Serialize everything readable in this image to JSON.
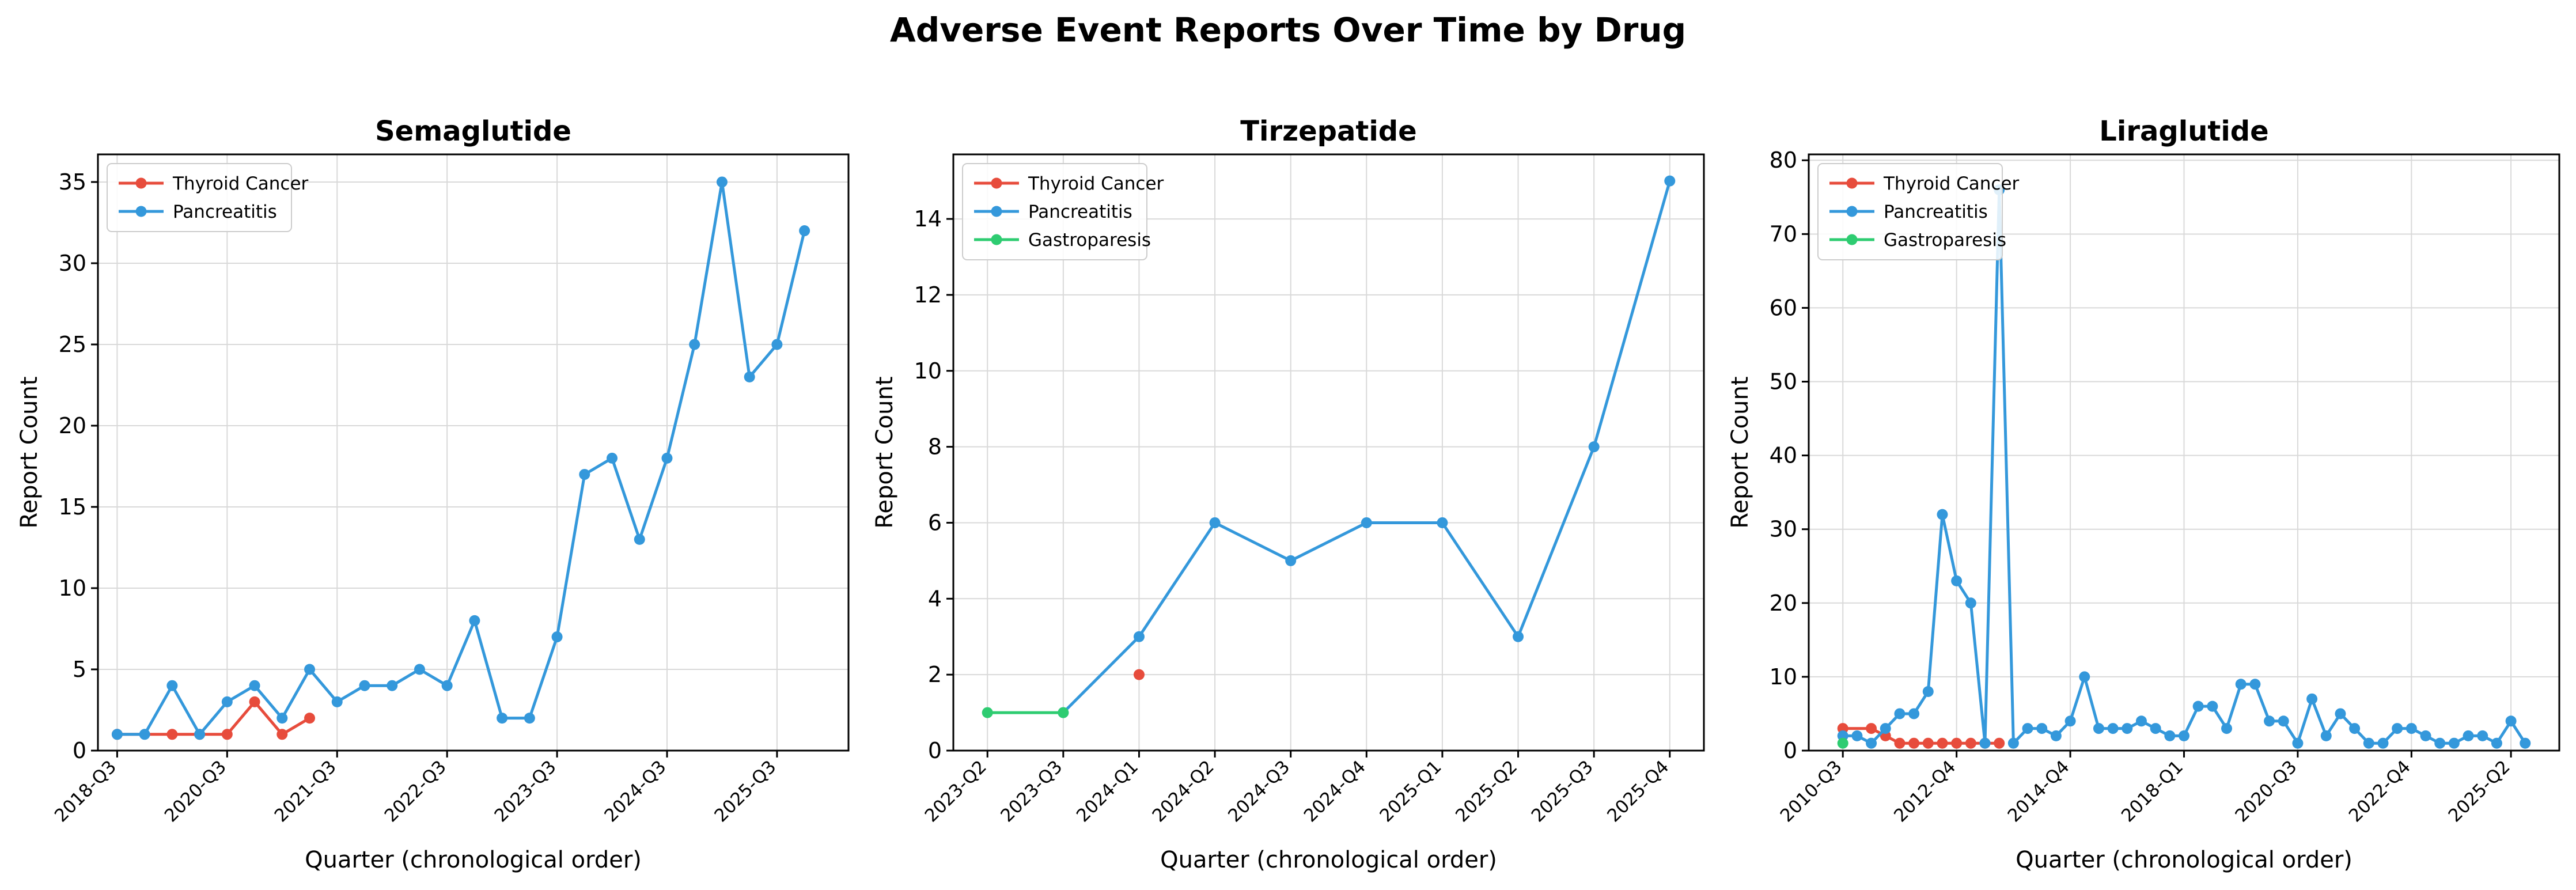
{
  "figure_title": "Adverse Event Reports Over Time by Drug",
  "colors": {
    "Thyroid Cancer": "#e74c3c",
    "Pancreatitis": "#3498db",
    "Gastroparesis": "#2ecc71"
  },
  "chart_data": [
    {
      "type": "line",
      "title": "Semaglutide",
      "xlabel": "Quarter (chronological order)",
      "ylabel": "Report Count",
      "ylim": [
        0,
        36.7
      ],
      "yticks": [
        0,
        5,
        10,
        15,
        20,
        25,
        30,
        35
      ],
      "xlim": [
        -0.7,
        26.6
      ],
      "xtick_labels": [
        {
          "i": 0,
          "label": "2018-Q3"
        },
        {
          "i": 4,
          "label": "2020-Q3"
        },
        {
          "i": 8,
          "label": "2021-Q3"
        },
        {
          "i": 12,
          "label": "2022-Q3"
        },
        {
          "i": 16,
          "label": "2023-Q3"
        },
        {
          "i": 20,
          "label": "2024-Q3"
        },
        {
          "i": 24,
          "label": "2025-Q3"
        }
      ],
      "grid": true,
      "legend": "upper left",
      "series": [
        {
          "name": "Thyroid Cancer",
          "x": [
            0,
            2,
            3,
            4,
            5,
            6,
            7
          ],
          "y": [
            1,
            1,
            1,
            1,
            3,
            1,
            2
          ]
        },
        {
          "name": "Pancreatitis",
          "x": [
            0,
            1,
            2,
            3,
            4,
            5,
            6,
            7,
            8,
            9,
            10,
            11,
            12,
            13,
            14,
            15,
            16,
            17,
            18,
            19,
            20,
            21,
            22,
            23,
            24,
            25
          ],
          "y": [
            1,
            1,
            4,
            1,
            3,
            4,
            2,
            5,
            3,
            4,
            4,
            5,
            4,
            8,
            2,
            2,
            7,
            17,
            18,
            13,
            18,
            25,
            35,
            23,
            25,
            32
          ]
        }
      ]
    },
    {
      "type": "line",
      "title": "Tirzepatide",
      "xlabel": "Quarter (chronological order)",
      "ylabel": "Report Count",
      "ylim": [
        0,
        15.7
      ],
      "yticks": [
        0,
        2,
        4,
        6,
        8,
        10,
        12,
        14
      ],
      "xlim": [
        -0.45,
        9.45
      ],
      "xtick_labels": [
        {
          "i": 0,
          "label": "2023-Q2"
        },
        {
          "i": 1,
          "label": "2023-Q3"
        },
        {
          "i": 2,
          "label": "2024-Q1"
        },
        {
          "i": 3,
          "label": "2024-Q2"
        },
        {
          "i": 4,
          "label": "2024-Q3"
        },
        {
          "i": 5,
          "label": "2024-Q4"
        },
        {
          "i": 6,
          "label": "2025-Q1"
        },
        {
          "i": 7,
          "label": "2025-Q2"
        },
        {
          "i": 8,
          "label": "2025-Q3"
        },
        {
          "i": 9,
          "label": "2025-Q4"
        }
      ],
      "grid": true,
      "legend": "upper left",
      "series": [
        {
          "name": "Thyroid Cancer",
          "x": [
            2
          ],
          "y": [
            2
          ]
        },
        {
          "name": "Pancreatitis",
          "x": [
            1,
            2,
            3,
            4,
            5,
            6,
            7,
            8,
            9
          ],
          "y": [
            1,
            3,
            6,
            5,
            6,
            6,
            3,
            8,
            15
          ]
        },
        {
          "name": "Gastroparesis",
          "x": [
            0,
            1
          ],
          "y": [
            1,
            1
          ]
        }
      ]
    },
    {
      "type": "line",
      "title": "Liraglutide",
      "xlabel": "Quarter (chronological order)",
      "ylabel": "Report Count",
      "ylim": [
        0,
        80.8
      ],
      "yticks": [
        0,
        10,
        20,
        30,
        40,
        50,
        60,
        70,
        80
      ],
      "xlim": [
        -2.4,
        50.4
      ],
      "xtick_labels": [
        {
          "i": 0,
          "label": "2010-Q3"
        },
        {
          "i": 8,
          "label": "2012-Q4"
        },
        {
          "i": 16,
          "label": "2014-Q4"
        },
        {
          "i": 24,
          "label": "2018-Q1"
        },
        {
          "i": 32,
          "label": "2020-Q3"
        },
        {
          "i": 40,
          "label": "2022-Q4"
        },
        {
          "i": 47,
          "label": "2025-Q2"
        }
      ],
      "grid": true,
      "legend": "upper left",
      "series": [
        {
          "name": "Thyroid Cancer",
          "x": [
            0,
            2,
            3,
            4,
            5,
            6,
            7,
            8,
            9,
            10,
            11
          ],
          "y": [
            3,
            3,
            2,
            1,
            1,
            1,
            1,
            1,
            1,
            1,
            1
          ]
        },
        {
          "name": "Pancreatitis",
          "x": [
            0,
            1,
            2,
            3,
            4,
            5,
            6,
            7,
            8,
            9,
            10,
            11,
            12,
            13,
            14,
            15,
            16,
            17,
            18,
            19,
            20,
            21,
            22,
            23,
            24,
            25,
            26,
            27,
            28,
            29,
            30,
            31,
            32,
            33,
            34,
            35,
            36,
            37,
            38,
            39,
            40,
            41,
            42,
            43,
            44,
            45,
            46,
            47,
            48
          ],
          "y": [
            2,
            2,
            1,
            3,
            5,
            5,
            8,
            32,
            23,
            20,
            1,
            76,
            1,
            3,
            3,
            2,
            4,
            10,
            3,
            3,
            3,
            4,
            3,
            2,
            2,
            6,
            6,
            3,
            9,
            9,
            4,
            4,
            1,
            7,
            2,
            5,
            3,
            1,
            1,
            3,
            3,
            2,
            1,
            1,
            2,
            2,
            1,
            4,
            1
          ]
        },
        {
          "name": "Gastroparesis",
          "x": [
            0
          ],
          "y": [
            1
          ]
        }
      ]
    }
  ]
}
